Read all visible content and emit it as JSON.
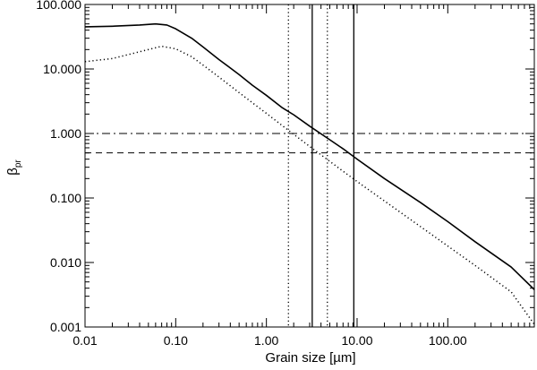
{
  "chart_data": {
    "type": "line",
    "title": "",
    "xlabel": "Grain size [µm]",
    "ylabel_main": "β",
    "ylabel_sub": "pr",
    "x_scale": "log",
    "y_scale": "log",
    "xlim": [
      0.01,
      900
    ],
    "ylim": [
      0.001,
      100
    ],
    "grid": false,
    "legend": "none",
    "x_ticks": [
      {
        "value": 0.01,
        "label": "0.01"
      },
      {
        "value": 0.1,
        "label": "0.10"
      },
      {
        "value": 1,
        "label": "1.00"
      },
      {
        "value": 10,
        "label": "10.00"
      },
      {
        "value": 100,
        "label": "100.00"
      }
    ],
    "y_ticks": [
      {
        "value": 0.001,
        "label": "0.001"
      },
      {
        "value": 0.01,
        "label": "0.010"
      },
      {
        "value": 0.1,
        "label": "0.100"
      },
      {
        "value": 1,
        "label": "1.000"
      },
      {
        "value": 10,
        "label": "10.000"
      },
      {
        "value": 100,
        "label": "100.000"
      }
    ],
    "series": [
      {
        "style": "solid",
        "points": [
          [
            0.01,
            45
          ],
          [
            0.02,
            46
          ],
          [
            0.04,
            48
          ],
          [
            0.06,
            50
          ],
          [
            0.08,
            48
          ],
          [
            0.1,
            42
          ],
          [
            0.15,
            30
          ],
          [
            0.2,
            22
          ],
          [
            0.3,
            14
          ],
          [
            0.5,
            8.2
          ],
          [
            0.7,
            5.6
          ],
          [
            1,
            3.9
          ],
          [
            1.5,
            2.5
          ],
          [
            2,
            1.95
          ],
          [
            3,
            1.3
          ],
          [
            5,
            0.8
          ],
          [
            7,
            0.58
          ],
          [
            10,
            0.4
          ],
          [
            20,
            0.2
          ],
          [
            50,
            0.085
          ],
          [
            100,
            0.043
          ],
          [
            200,
            0.021
          ],
          [
            500,
            0.0085
          ],
          [
            900,
            0.0038
          ]
        ]
      },
      {
        "style": "dotted",
        "points": [
          [
            0.01,
            13
          ],
          [
            0.02,
            14.5
          ],
          [
            0.04,
            18.5
          ],
          [
            0.07,
            22.5
          ],
          [
            0.1,
            20.5
          ],
          [
            0.15,
            15.5
          ],
          [
            0.2,
            11.5
          ],
          [
            0.3,
            7.5
          ],
          [
            0.5,
            4.3
          ],
          [
            0.7,
            3
          ],
          [
            1,
            2.05
          ],
          [
            1.5,
            1.32
          ],
          [
            2,
            0.97
          ],
          [
            3,
            0.63
          ],
          [
            5,
            0.37
          ],
          [
            7,
            0.26
          ],
          [
            10,
            0.18
          ],
          [
            20,
            0.09
          ],
          [
            50,
            0.036
          ],
          [
            100,
            0.018
          ],
          [
            200,
            0.009
          ],
          [
            500,
            0.0035
          ],
          [
            900,
            0.0011
          ]
        ]
      }
    ],
    "vertical_lines": [
      {
        "x": 1.75,
        "style": "dotted"
      },
      {
        "x": 3.2,
        "style": "solid"
      },
      {
        "x": 4.7,
        "style": "dotted"
      },
      {
        "x": 9.2,
        "style": "solid"
      }
    ],
    "horizontal_lines": [
      {
        "y": 1.0,
        "style": "dashdot"
      },
      {
        "y": 0.5,
        "style": "dashed"
      }
    ]
  }
}
